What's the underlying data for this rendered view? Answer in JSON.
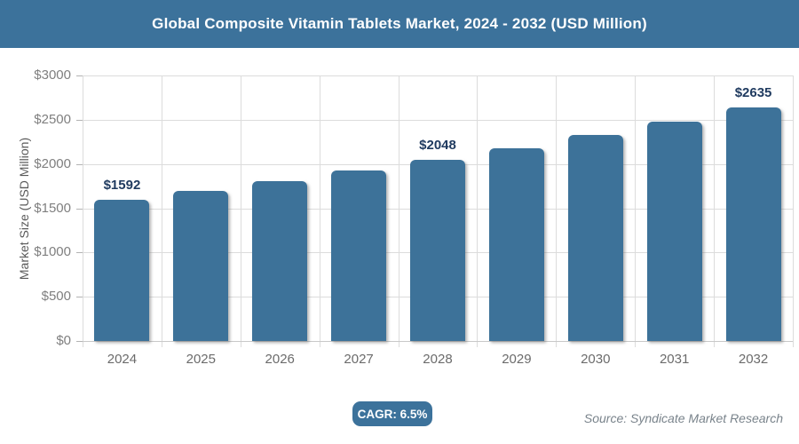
{
  "header": {
    "title": "Global Composite Vitamin Tablets Market, 2024 - 2032 (USD Million)"
  },
  "chart_data": {
    "type": "bar",
    "title": "Global Composite Vitamin Tablets Market, 2024 - 2032 (USD Million)",
    "categories": [
      "2024",
      "2025",
      "2026",
      "2027",
      "2028",
      "2029",
      "2030",
      "2031",
      "2032"
    ],
    "values": [
      1592,
      1695,
      1806,
      1923,
      2048,
      2181,
      2323,
      2474,
      2635
    ],
    "data_labels": [
      "$1592",
      null,
      null,
      null,
      "$2048",
      null,
      null,
      null,
      "$2635"
    ],
    "xlabel": "",
    "ylabel": "Market Size (USD Million)",
    "ylim": [
      0,
      3000
    ],
    "y_ticks": [
      {
        "value": 0,
        "label": "$0"
      },
      {
        "value": 500,
        "label": "$500"
      },
      {
        "value": 1000,
        "label": "$1000"
      },
      {
        "value": 1500,
        "label": "$1500"
      },
      {
        "value": 2000,
        "label": "$2000"
      },
      {
        "value": 2500,
        "label": "$2500"
      },
      {
        "value": 3000,
        "label": "$3000"
      }
    ],
    "grid": true,
    "legend": "none"
  },
  "footer": {
    "cagr_label": "CAGR: 6.5%",
    "source": "Source: Syndicate Market Research"
  },
  "colors": {
    "accent": "#3c729b",
    "bar": "#3d7299",
    "data_label": "#1f3a5f",
    "grid": "#dcdcdc",
    "tick_text": "#7f7f7f",
    "source_text": "#79838b",
    "title_text": "#ffffff"
  }
}
